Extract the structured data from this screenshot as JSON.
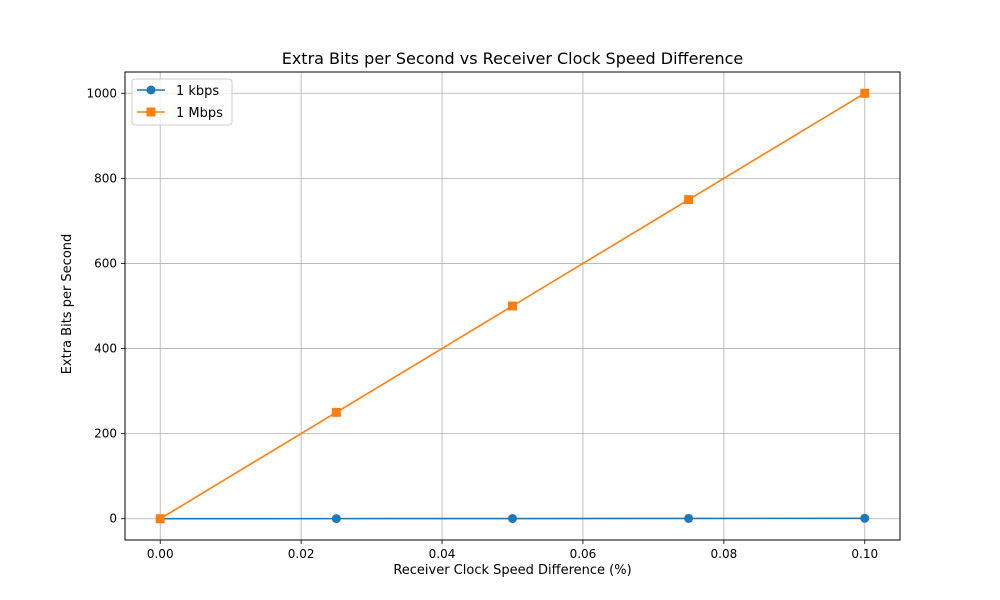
{
  "chart_data": {
    "type": "line",
    "title": "Extra Bits per Second vs Receiver Clock Speed Difference",
    "xlabel": "Receiver Clock Speed Difference (%)",
    "ylabel": "Extra Bits per Second",
    "x": [
      0.0,
      0.025,
      0.05,
      0.075,
      0.1
    ],
    "xlim": [
      -0.005,
      0.105
    ],
    "ylim": [
      -50,
      1050
    ],
    "xticks": [
      0.0,
      0.02,
      0.04,
      0.06,
      0.08,
      0.1
    ],
    "xtick_labels": [
      "0.00",
      "0.02",
      "0.04",
      "0.06",
      "0.08",
      "0.10"
    ],
    "yticks": [
      0,
      200,
      400,
      600,
      800,
      1000
    ],
    "ytick_labels": [
      "0",
      "200",
      "400",
      "600",
      "800",
      "1000"
    ],
    "grid": true,
    "legend_position": "top-left",
    "series": [
      {
        "name": "1 kbps",
        "values": [
          0,
          0.25,
          0.5,
          0.75,
          1.0
        ],
        "color": "#1f77b4",
        "marker": "circle"
      },
      {
        "name": "1 Mbps",
        "values": [
          0,
          250,
          500,
          750,
          1000
        ],
        "color": "#ff7f0e",
        "marker": "square"
      }
    ]
  }
}
